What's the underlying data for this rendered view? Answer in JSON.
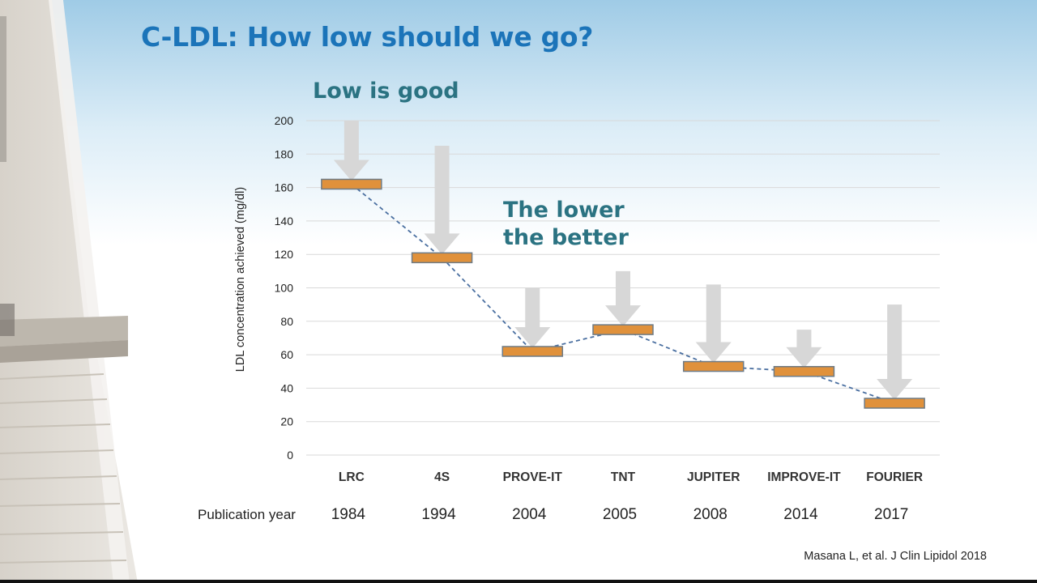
{
  "slide": {
    "title": "C-LDL: How low should we go?",
    "subtitle_1": "Low is good",
    "subtitle_2_line1": "The lower",
    "subtitle_2_line2": "the better",
    "reference": "Masana L, et al. J Clin Lipidol 2018",
    "publication_year_label": "Publication year"
  },
  "colors": {
    "title": "#1b74b9",
    "subtitle": "#2b7382",
    "bar_fill": "#e0913b",
    "bar_stroke": "#6e7b86",
    "trend_line": "#4a6fa0",
    "arrow": "#d7d7d7",
    "grid": "#d9d9d9"
  },
  "chart_data": {
    "type": "bar",
    "ylabel": "LDL concentration achieved  (mg/dl)",
    "ylim": [
      0,
      200
    ],
    "yticks": [
      0,
      20,
      40,
      60,
      80,
      100,
      120,
      140,
      160,
      180,
      200
    ],
    "grid": true,
    "categories": [
      "LRC",
      "4S",
      "PROVE-IT",
      "TNT",
      "JUPITER",
      "IMPROVE-IT",
      "FOURIER"
    ],
    "publication_years": [
      "1984",
      "1994",
      "2004",
      "2005",
      "2008",
      "2014",
      "2017"
    ],
    "values": [
      162,
      118,
      62,
      75,
      53,
      50,
      31
    ],
    "arrow_start_values": [
      200,
      185,
      100,
      110,
      102,
      75,
      90
    ],
    "trend_line": "dashed"
  }
}
